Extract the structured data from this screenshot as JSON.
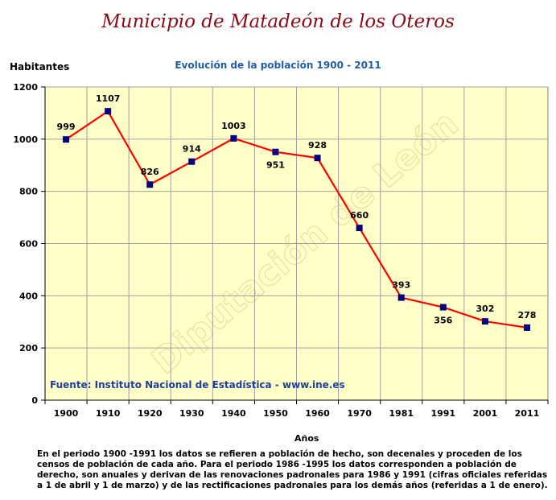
{
  "page_title": "Municipio de Matadeón de los Oteros",
  "footnote": "En el periodo 1900 -1991 los datos se refieren a población de hecho, son decenales y proceden de los censos de población de cada año. Para el periodo 1986 -1995 los datos corresponden a población de derecho, son anuales y derivan de las renovaciones padronales para 1986 y 1991 (cifras oficiales referidas a 1 de abril y 1 de marzo) y de las rectificaciones padronales para los demás años (referidas a 1 de enero).",
  "colors": {
    "plot_bg": "#ffffc8",
    "line": "#ff0000",
    "marker": "#000080",
    "title": "#8b0a16",
    "subtitle": "#1f5fa8",
    "source": "#1f3f9f"
  },
  "chart_data": {
    "type": "line",
    "title": "Evolución de la población 1900 - 2011",
    "ylabel": "Habitantes",
    "xlabel": "Años",
    "source": "Fuente: Instituto Nacional de Estadística - www.ine.es",
    "watermark": "Diputación de León",
    "categories": [
      "1900",
      "1910",
      "1920",
      "1930",
      "1940",
      "1950",
      "1960",
      "1970",
      "1981",
      "1991",
      "2001",
      "2011"
    ],
    "values": [
      999,
      1107,
      826,
      914,
      1003,
      951,
      928,
      660,
      393,
      356,
      302,
      278
    ],
    "label_position": [
      "above",
      "above",
      "above",
      "above",
      "above",
      "below",
      "above",
      "above",
      "above",
      "below",
      "above",
      "above"
    ],
    "ylim": [
      0,
      1200
    ],
    "yticks": [
      0,
      200,
      400,
      600,
      800,
      1000,
      1200
    ],
    "grid": true,
    "legend": "none"
  }
}
